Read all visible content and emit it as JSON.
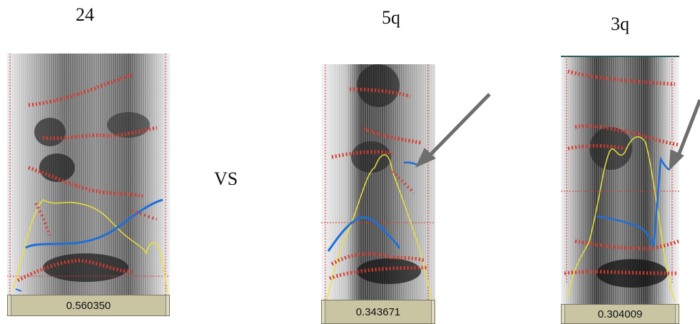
{
  "headings": {
    "left": "24",
    "middle": "5q",
    "right": "3q"
  },
  "separator": "VS",
  "panels": [
    {
      "label": "24",
      "duration": "0.560350"
    },
    {
      "label": "5q",
      "duration": "0.343671"
    },
    {
      "label": "3q",
      "duration": "0.304009"
    }
  ],
  "colors": {
    "formant": "#d93a2f",
    "pitch": "#1f6fd6",
    "intensity": "#e8e23a",
    "arrow": "#6e6e6e",
    "duration_bar": "#c9c5a3"
  }
}
